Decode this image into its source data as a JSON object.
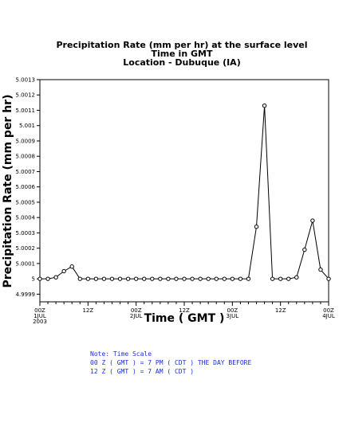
{
  "chart_data": {
    "type": "line",
    "title": "Precipitation Rate (mm per hr) at the surface level",
    "subtitle1": "Time in GMT",
    "subtitle2": "Location - Dubuque (IA)",
    "xlabel": "Time ( GMT )",
    "ylabel": "Precipitation Rate (mm per hr)",
    "ylim": [
      4.99985,
      5.0013
    ],
    "xlim_hours": [
      0,
      72
    ],
    "yticks": [
      {
        "value": 5.0013,
        "label": "5.0013"
      },
      {
        "value": 5.0012,
        "label": "5.0012"
      },
      {
        "value": 5.0011,
        "label": "5.0011"
      },
      {
        "value": 5.001,
        "label": "5.001"
      },
      {
        "value": 5.0009,
        "label": "5.0009"
      },
      {
        "value": 5.0008,
        "label": "5.0008"
      },
      {
        "value": 5.0007,
        "label": "5.0007"
      },
      {
        "value": 5.0006,
        "label": "5.0006"
      },
      {
        "value": 5.0005,
        "label": "5.0005"
      },
      {
        "value": 5.0004,
        "label": "5.0004"
      },
      {
        "value": 5.0003,
        "label": "5.0003"
      },
      {
        "value": 5.0002,
        "label": "5.0002"
      },
      {
        "value": 5.0001,
        "label": "5.0001"
      },
      {
        "value": 5.0,
        "label": "5"
      },
      {
        "value": 4.9999,
        "label": "4.9999"
      }
    ],
    "xticks": [
      {
        "hour": 0,
        "lines": [
          "00Z",
          "1JUL",
          "2003"
        ]
      },
      {
        "hour": 12,
        "lines": [
          "12Z"
        ]
      },
      {
        "hour": 24,
        "lines": [
          "00Z",
          "2JUL"
        ]
      },
      {
        "hour": 36,
        "lines": [
          "12Z"
        ]
      },
      {
        "hour": 48,
        "lines": [
          "00Z",
          "3JUL"
        ]
      },
      {
        "hour": 60,
        "lines": [
          "12Z"
        ]
      },
      {
        "hour": 72,
        "lines": [
          "00Z",
          "4JUL"
        ]
      }
    ],
    "minor_tick_step_hours": 2,
    "series": [
      {
        "x_hours": [
          0,
          2,
          4,
          6,
          8,
          10,
          12,
          14,
          16,
          18,
          20,
          22,
          24,
          26,
          28,
          30,
          32,
          34,
          36,
          38,
          40,
          42,
          44,
          46,
          48,
          50,
          52,
          54,
          56,
          58,
          60,
          62,
          64,
          66,
          68,
          70,
          72
        ],
        "values": [
          5.0,
          5.0,
          5.00001,
          5.00005,
          5.00008,
          5.0,
          5.0,
          5.0,
          5.0,
          5.0,
          5.0,
          5.0,
          5.0,
          5.0,
          5.0,
          5.0,
          5.0,
          5.0,
          5.0,
          5.0,
          5.0,
          5.0,
          5.0,
          5.0,
          5.0,
          5.0,
          5.0,
          5.00034,
          5.00113,
          5.0,
          5.0,
          5.0,
          5.00001,
          5.00019,
          5.00038,
          5.00006,
          5.0
        ]
      }
    ],
    "grid": false,
    "legend": "none"
  },
  "notes": [
    "Note: Time Scale",
    "00 Z ( GMT ) = 7 PM ( CDT ) THE DAY BEFORE",
    "12 Z ( GMT ) = 7 AM ( CDT )"
  ],
  "colors": {
    "line": "#000000",
    "note": "#1a2fd6",
    "background": "#ffffff"
  }
}
